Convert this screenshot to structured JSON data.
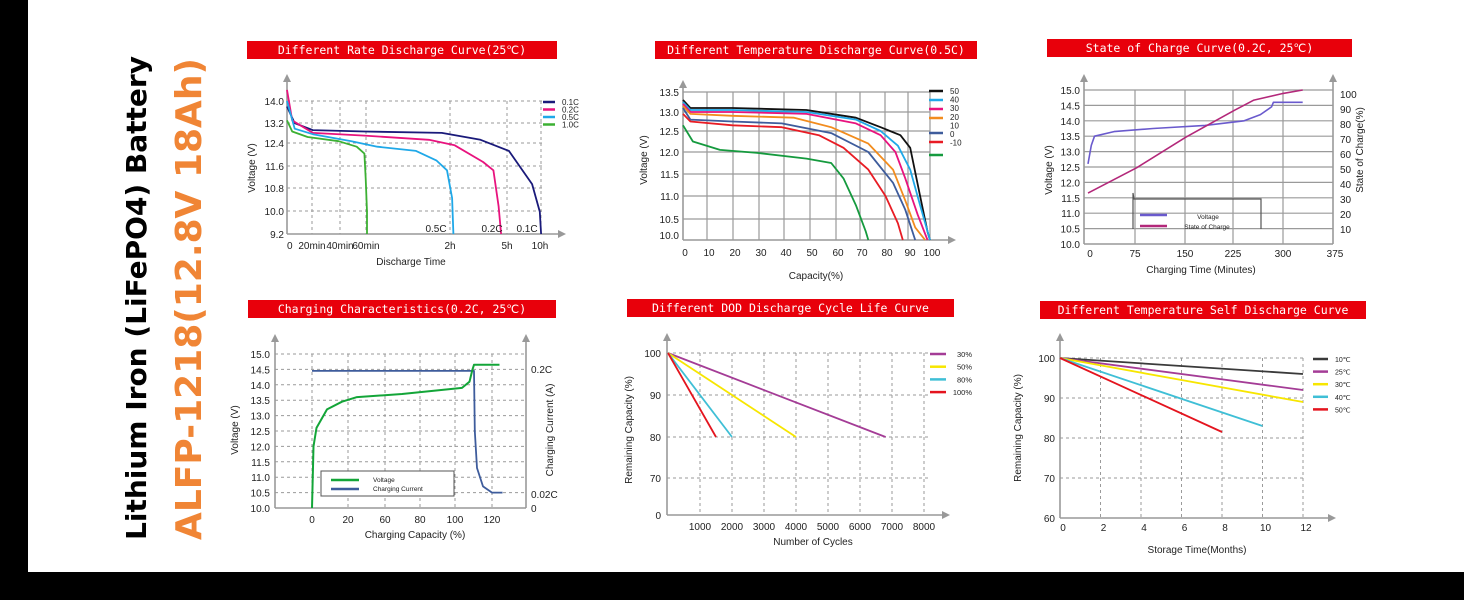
{
  "side_title": {
    "line1": "Lithium Iron (LiFePO4) Battery",
    "line2": "ALFP-1218(12.8V 18Ah)",
    "accent_color": "#f08535"
  },
  "chart_data": [
    {
      "id": "rate-discharge",
      "type": "line",
      "title": "Different Rate Discharge Curve(25℃)",
      "xlabel": "Discharge Time",
      "ylabel": "Voltage (V)",
      "yticks": [
        "14.0",
        "13.2",
        "12.4",
        "11.6",
        "10.8",
        "10.0",
        "9.2"
      ],
      "ylim": [
        9.2,
        14.0
      ],
      "xticks": [
        "0",
        "20min",
        "40min",
        "60min",
        "2h",
        "5h",
        "10h"
      ],
      "grid": true,
      "legend_position": "top-right",
      "series": [
        {
          "name": "0.1C",
          "color": "#1a1a7a",
          "end_label": "0.1C",
          "points": [
            [
              0,
              13.8
            ],
            [
              0.03,
              13.2
            ],
            [
              0.1,
              12.95
            ],
            [
              0.3,
              12.9
            ],
            [
              0.6,
              12.85
            ],
            [
              0.75,
              12.6
            ],
            [
              0.86,
              12.2
            ],
            [
              0.95,
              11.0
            ],
            [
              0.98,
              10.0
            ],
            [
              0.985,
              9.2
            ]
          ]
        },
        {
          "name": "0.2C",
          "color": "#e8137e",
          "end_label": "0.2C",
          "points": [
            [
              0,
              14.4
            ],
            [
              0.02,
              13.3
            ],
            [
              0.1,
              12.85
            ],
            [
              0.3,
              12.75
            ],
            [
              0.55,
              12.6
            ],
            [
              0.65,
              12.4
            ],
            [
              0.76,
              11.8
            ],
            [
              0.8,
              11.5
            ],
            [
              0.82,
              10.2
            ],
            [
              0.83,
              9.2
            ]
          ]
        },
        {
          "name": "0.5C",
          "color": "#1fa8e8",
          "end_label": "0.5C",
          "points": [
            [
              0,
              14.0
            ],
            [
              0.03,
              13.0
            ],
            [
              0.1,
              12.8
            ],
            [
              0.25,
              12.55
            ],
            [
              0.35,
              12.35
            ],
            [
              0.5,
              12.2
            ],
            [
              0.58,
              11.85
            ],
            [
              0.62,
              11.5
            ],
            [
              0.64,
              10.5
            ],
            [
              0.645,
              9.2
            ]
          ]
        },
        {
          "name": "1.0C",
          "color": "#3cb033",
          "points": [
            [
              0,
              13.3
            ],
            [
              0.02,
              12.9
            ],
            [
              0.08,
              12.7
            ],
            [
              0.2,
              12.55
            ],
            [
              0.27,
              12.35
            ],
            [
              0.3,
              12.1
            ],
            [
              0.305,
              11.2
            ],
            [
              0.31,
              10.0
            ],
            [
              0.31,
              9.2
            ]
          ]
        }
      ]
    },
    {
      "id": "temp-discharge",
      "type": "line",
      "title": "Different Temperature Discharge Curve(0.5C)",
      "xlabel": "Capacity(%)",
      "ylabel": "Voltage (V)",
      "yticks": [
        "13.5",
        "13.0",
        "12.5",
        "12.0",
        "11.5",
        "11.0",
        "10.5",
        "10.0"
      ],
      "ylim": [
        10.0,
        13.5
      ],
      "xticks": [
        "0",
        "10",
        "20",
        "30",
        "40",
        "50",
        "60",
        "70",
        "80",
        "90",
        "100"
      ],
      "xlim": [
        0,
        100
      ],
      "grid": true,
      "legend_position": "right",
      "legend_labels": [
        "50",
        "40",
        "30",
        "20",
        "10",
        "0",
        "-10"
      ],
      "series": [
        {
          "name": "50",
          "color": "#111111",
          "points": [
            [
              0,
              13.3
            ],
            [
              3,
              13.1
            ],
            [
              20,
              13.1
            ],
            [
              50,
              13.05
            ],
            [
              70,
              12.85
            ],
            [
              80,
              12.6
            ],
            [
              88,
              12.4
            ],
            [
              92,
              12.1
            ],
            [
              96,
              11.0
            ],
            [
              99,
              10.2
            ],
            [
              100,
              10.0
            ]
          ]
        },
        {
          "name": "40",
          "color": "#1fa8e8",
          "points": [
            [
              0,
              13.25
            ],
            [
              3,
              13.05
            ],
            [
              20,
              13.05
            ],
            [
              50,
              13.0
            ],
            [
              70,
              12.8
            ],
            [
              80,
              12.5
            ],
            [
              87,
              12.15
            ],
            [
              92,
              11.6
            ],
            [
              96,
              10.8
            ],
            [
              100,
              10.0
            ]
          ]
        },
        {
          "name": "30",
          "color": "#e8137e",
          "points": [
            [
              0,
              13.2
            ],
            [
              3,
              13.0
            ],
            [
              20,
              13.0
            ],
            [
              50,
              12.95
            ],
            [
              70,
              12.7
            ],
            [
              80,
              12.4
            ],
            [
              86,
              12.0
            ],
            [
              90,
              11.4
            ],
            [
              95,
              10.6
            ],
            [
              99,
              10.0
            ]
          ]
        },
        {
          "name": "20",
          "color": "#f28c1e",
          "points": [
            [
              0,
              13.15
            ],
            [
              3,
              12.95
            ],
            [
              20,
              12.9
            ],
            [
              45,
              12.85
            ],
            [
              60,
              12.6
            ],
            [
              75,
              12.2
            ],
            [
              85,
              11.6
            ],
            [
              90,
              10.9
            ],
            [
              94,
              10.3
            ],
            [
              98,
              10.0
            ]
          ]
        },
        {
          "name": "10",
          "color": "#3e5c9c",
          "points": [
            [
              0,
              13.1
            ],
            [
              3,
              12.8
            ],
            [
              20,
              12.75
            ],
            [
              40,
              12.7
            ],
            [
              60,
              12.45
            ],
            [
              75,
              12.0
            ],
            [
              85,
              11.3
            ],
            [
              90,
              10.7
            ],
            [
              94,
              10.0
            ]
          ]
        },
        {
          "name": "0",
          "color": "#e81c24",
          "points": [
            [
              0,
              12.95
            ],
            [
              3,
              12.75
            ],
            [
              20,
              12.65
            ],
            [
              40,
              12.6
            ],
            [
              55,
              12.4
            ],
            [
              65,
              12.1
            ],
            [
              75,
              11.6
            ],
            [
              82,
              11.0
            ],
            [
              87,
              10.4
            ],
            [
              89,
              10.0
            ]
          ]
        },
        {
          "name": "-10",
          "color": "#159a3e",
          "points": [
            [
              0,
              12.65
            ],
            [
              4,
              12.25
            ],
            [
              15,
              12.05
            ],
            [
              30,
              11.98
            ],
            [
              50,
              11.85
            ],
            [
              60,
              11.75
            ],
            [
              65,
              11.4
            ],
            [
              70,
              10.8
            ],
            [
              74,
              10.2
            ],
            [
              75,
              10.0
            ]
          ]
        }
      ]
    },
    {
      "id": "state-of-charge",
      "type": "line",
      "title": "State of Charge Curve(0.2C, 25℃)",
      "xlabel": "Charging Time (Minutes)",
      "ylabel": "Voltage (V)",
      "ylabel_right": "State of Charge(%)",
      "yticks": [
        "15.0",
        "14.5",
        "14.0",
        "13.5",
        "13.0",
        "12.5",
        "12.0",
        "11.5",
        "11.0",
        "10.5",
        "10.0"
      ],
      "ylim": [
        10.0,
        15.0
      ],
      "yticks_right": [
        "100",
        "90",
        "80",
        "70",
        "60",
        "50",
        "40",
        "30",
        "20",
        "10"
      ],
      "ylim_right": [
        0,
        100
      ],
      "xticks": [
        "0",
        "75",
        "150",
        "225",
        "300",
        "375"
      ],
      "xlim": [
        0,
        375
      ],
      "grid": true,
      "legend_position": "bottom-center",
      "series": [
        {
          "name": "Voltage",
          "axis": "left",
          "color": "#6a5acd",
          "points": [
            [
              0,
              12.6
            ],
            [
              5,
              13.2
            ],
            [
              10,
              13.5
            ],
            [
              40,
              13.65
            ],
            [
              100,
              13.75
            ],
            [
              180,
              13.85
            ],
            [
              240,
              14.0
            ],
            [
              265,
              14.2
            ],
            [
              282,
              14.45
            ],
            [
              285,
              14.6
            ],
            [
              330,
              14.6
            ]
          ]
        },
        {
          "name": "State of Charge",
          "axis": "right",
          "color": "#b3287a",
          "points": [
            [
              0,
              39
            ],
            [
              75,
              54
            ],
            [
              150,
              72
            ],
            [
              225,
              88
            ],
            [
              255,
              94
            ],
            [
              300,
              98
            ],
            [
              330,
              100
            ]
          ]
        }
      ]
    },
    {
      "id": "charging-characteristics",
      "type": "line",
      "title": "Charging Characteristics(0.2C, 25℃)",
      "xlabel": "Charging Capacity (%)",
      "ylabel": "Voltage (V)",
      "ylabel_right": "Charging Current (A)",
      "yticks": [
        "15.0",
        "14.5",
        "14.0",
        "13.5",
        "13.0",
        "12.5",
        "12.0",
        "11.5",
        "11.0",
        "10.5",
        "10.0"
      ],
      "ylim": [
        10.0,
        15.0
      ],
      "yticks_right": [
        "0.2C",
        "0.02C",
        "0"
      ],
      "xticks": [
        "0",
        "20",
        "60",
        "80",
        "100",
        "120"
      ],
      "grid": true,
      "legend_position": "bottom-left",
      "series": [
        {
          "name": "Voltage",
          "color": "#13a538",
          "points": [
            [
              0,
              10.0
            ],
            [
              1,
              12.0
            ],
            [
              3,
              12.6
            ],
            [
              10,
              13.2
            ],
            [
              20,
              13.45
            ],
            [
              30,
              13.6
            ],
            [
              60,
              13.7
            ],
            [
              100,
              13.9
            ],
            [
              105,
              14.1
            ],
            [
              107,
              14.5
            ],
            [
              108,
              14.65
            ],
            [
              125,
              14.65
            ]
          ]
        },
        {
          "name": "Charging Current",
          "color": "#3e5c9c",
          "points": [
            [
              0,
              14.45
            ],
            [
              108,
              14.45
            ],
            [
              108.5,
              12.5
            ],
            [
              110,
              11.3
            ],
            [
              114,
              10.7
            ],
            [
              120,
              10.5
            ],
            [
              127,
              10.5
            ]
          ]
        }
      ]
    },
    {
      "id": "dod-cycle-life",
      "type": "line",
      "title": "Different DOD Discharge Cycle Life Curve",
      "xlabel": "Number of Cycles",
      "ylabel": "Remaining Capacity (%)",
      "yticks": [
        "100",
        "90",
        "80",
        "70",
        "0"
      ],
      "xticks": [
        "1000",
        "2000",
        "3000",
        "4000",
        "5000",
        "6000",
        "7000",
        "8000"
      ],
      "xlim": [
        0,
        8000
      ],
      "grid": true,
      "legend_position": "top-right",
      "series": [
        {
          "name": "30%",
          "color": "#a43c96",
          "points": [
            [
              0,
              100
            ],
            [
              6800,
              80
            ]
          ]
        },
        {
          "name": "50%",
          "color": "#f7e600",
          "points": [
            [
              0,
              100
            ],
            [
              4000,
              80
            ]
          ]
        },
        {
          "name": "80%",
          "color": "#3fbfd6",
          "points": [
            [
              0,
              100
            ],
            [
              2000,
              80
            ]
          ]
        },
        {
          "name": "100%",
          "color": "#e4141e",
          "points": [
            [
              0,
              100
            ],
            [
              1500,
              80
            ]
          ]
        }
      ]
    },
    {
      "id": "self-discharge",
      "type": "line",
      "title": "Different Temperature Self Discharge  Curve",
      "xlabel": "Storage Time(Months)",
      "ylabel": "Remaining Capacity (%)",
      "yticks": [
        "100",
        "90",
        "80",
        "70",
        "60"
      ],
      "ylim": [
        60,
        100
      ],
      "xticks": [
        "0",
        "2",
        "4",
        "6",
        "8",
        "10",
        "12"
      ],
      "xlim": [
        0,
        12
      ],
      "grid": true,
      "legend_position": "top-right",
      "series": [
        {
          "name": "10℃",
          "color": "#3a3a3a",
          "points": [
            [
              0,
              100
            ],
            [
              12,
              96
            ]
          ]
        },
        {
          "name": "25℃",
          "color": "#a43c96",
          "points": [
            [
              0,
              100
            ],
            [
              12,
              92
            ]
          ]
        },
        {
          "name": "30℃",
          "color": "#f7e600",
          "points": [
            [
              0,
              100
            ],
            [
              12,
              89
            ]
          ]
        },
        {
          "name": "40℃",
          "color": "#3fbfd6",
          "points": [
            [
              0,
              100
            ],
            [
              10,
              83
            ]
          ]
        },
        {
          "name": "50℃",
          "color": "#e4141e",
          "points": [
            [
              0,
              100
            ],
            [
              8,
              81.5
            ]
          ]
        }
      ]
    }
  ]
}
